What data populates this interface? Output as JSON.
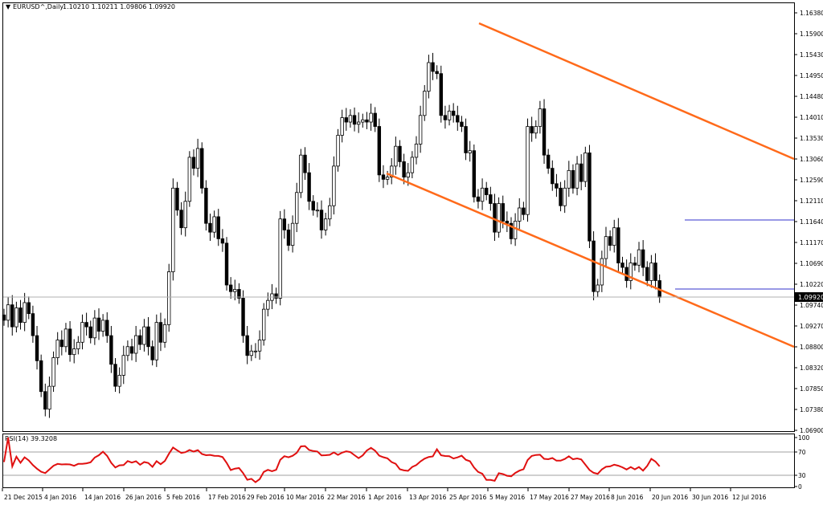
{
  "main_panel": {
    "symbol_label": "EURUSD^,Daily",
    "ohlc_values": "1.10210 1.10211 1.09806 1.09920",
    "current_price": "1.09920",
    "price_axis_labels": [
      "1.16380",
      "1.15900",
      "1.15430",
      "1.14950",
      "1.14480",
      "1.14010",
      "1.13530",
      "1.13060",
      "1.12590",
      "1.12110",
      "1.11640",
      "1.11170",
      "1.10690",
      "1.10220",
      "1.09740",
      "1.09270",
      "1.08800",
      "1.08320",
      "1.07850",
      "1.07380",
      "1.06900"
    ]
  },
  "rsi_panel": {
    "label": "RSI(14) 39.3208",
    "axis_labels": [
      "100",
      "70",
      "30",
      "0"
    ]
  },
  "time_axis_labels": [
    "21 Dec 2015",
    "4 Jan 2016",
    "14 Jan 2016",
    "26 Jan 2016",
    "5 Feb 2016",
    "17 Feb 2016",
    "29 Feb 2016",
    "10 Mar 2016",
    "22 Mar 2016",
    "1 Apr 2016",
    "13 Apr 2016",
    "25 Apr 2016",
    "5 May 2016",
    "17 May 2016",
    "27 May 2016",
    "8 Jun 2016",
    "20 Jun 2016",
    "30 Jun 2016",
    "12 Jul 2016"
  ],
  "colors": {
    "background": "#ffffff",
    "candle": "#000000",
    "channel_lines": "#ff6a1a",
    "range_lines": "#3333cc",
    "rsi_line": "#e01010",
    "grid_ref": "#a0a0a0"
  },
  "chart_data": {
    "type": "candlestick",
    "title": "EURUSD^,Daily",
    "ylim": [
      1.069,
      1.1638
    ],
    "closes": [
      1.094,
      1.0975,
      1.0925,
      1.0968,
      1.0935,
      1.098,
      1.0955,
      1.0905,
      1.0848,
      1.0778,
      1.0738,
      1.079,
      1.0855,
      1.0895,
      1.088,
      1.092,
      1.0862,
      1.0875,
      1.089,
      1.0935,
      1.0925,
      1.09,
      1.0945,
      1.0915,
      1.094,
      1.0905,
      1.084,
      1.079,
      1.0815,
      1.086,
      1.088,
      1.0865,
      1.0905,
      1.0885,
      1.0925,
      1.088,
      1.085,
      1.0935,
      1.089,
      1.093,
      1.105,
      1.124,
      1.119,
      1.115,
      1.121,
      1.131,
      1.1285,
      1.133,
      1.124,
      1.116,
      1.114,
      1.1175,
      1.1125,
      1.1115,
      1.102,
      1.1005,
      1.101,
      1.099,
      1.0905,
      1.086,
      1.087,
      1.087,
      1.0895,
      1.0965,
      1.0985,
      1.1,
      1.099,
      1.117,
      1.1145,
      1.111,
      1.116,
      1.123,
      1.1315,
      1.1275,
      1.121,
      1.119,
      1.119,
      1.1145,
      1.117,
      1.12,
      1.129,
      1.136,
      1.14,
      1.139,
      1.1405,
      1.1385,
      1.139,
      1.1395,
      1.139,
      1.141,
      1.138,
      1.127,
      1.126,
      1.1265,
      1.129,
      1.1335,
      1.13,
      1.1265,
      1.1275,
      1.131,
      1.134,
      1.1405,
      1.146,
      1.1525,
      1.1505,
      1.15,
      1.1405,
      1.1395,
      1.1415,
      1.1405,
      1.139,
      1.138,
      1.132,
      1.1325,
      1.122,
      1.121,
      1.124,
      1.1225,
      1.1205,
      1.114,
      1.1205,
      1.1165,
      1.116,
      1.1125,
      1.1165,
      1.1195,
      1.118,
      1.138,
      1.1365,
      1.138,
      1.142,
      1.1315,
      1.1285,
      1.125,
      1.124,
      1.12,
      1.124,
      1.128,
      1.124,
      1.1295,
      1.1255,
      1.132,
      1.112,
      1.1005,
      1.102,
      1.108,
      1.113,
      1.111,
      1.115,
      1.107,
      1.106,
      1.103,
      1.107,
      1.1065,
      1.11,
      1.106,
      1.103,
      1.107,
      1.103,
      1.0992
    ]
  }
}
